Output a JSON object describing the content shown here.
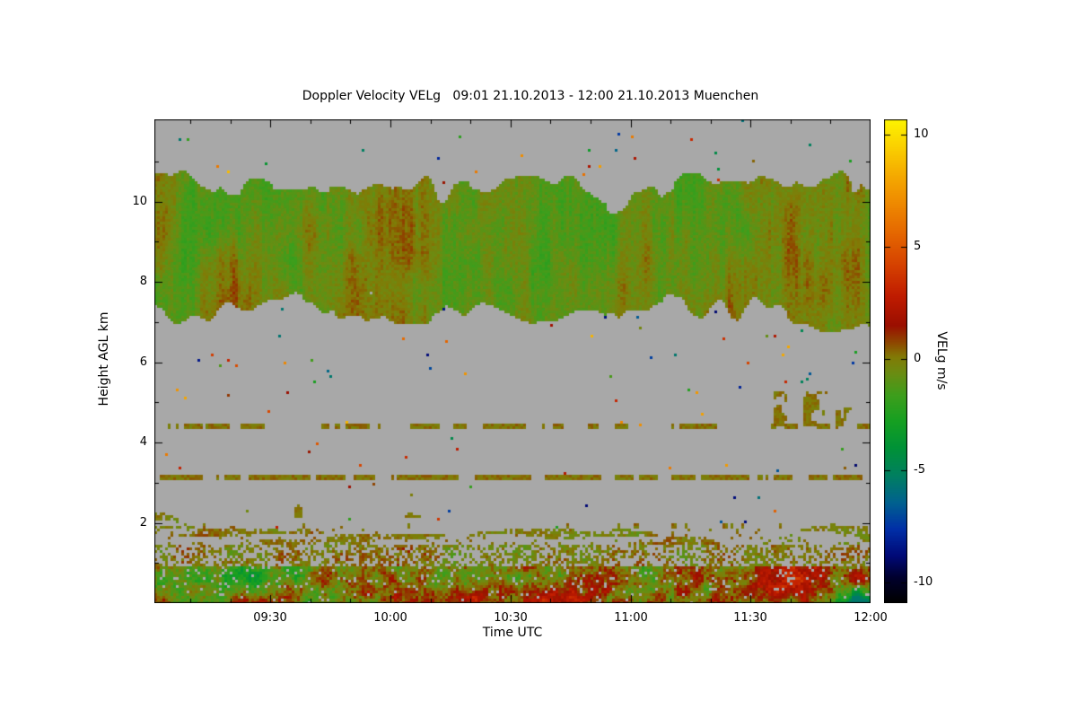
{
  "page": {
    "background": "#ffffff"
  },
  "chart_data": {
    "type": "heatmap",
    "title": "Doppler Velocity VELg   09:01 21.10.2013 - 12:00 21.10.2013 Muenchen",
    "xlabel": "Time UTC",
    "ylabel": "Height AGL km",
    "colorbar_label": "VELg m/s",
    "site": "Muenchen",
    "time_start": "09:01 21.10.2013",
    "time_end": "12:00 21.10.2013",
    "x_axis": {
      "start_label": "09:01",
      "end_label": "12:00",
      "start_minutes": 0,
      "end_minutes": 179,
      "minor_tick_minutes": 10,
      "ticks": [
        {
          "t": 29,
          "label": "09:30"
        },
        {
          "t": 59,
          "label": "10:00"
        },
        {
          "t": 89,
          "label": "10:30"
        },
        {
          "t": 119,
          "label": "11:00"
        },
        {
          "t": 149,
          "label": "11:30"
        },
        {
          "t": 179,
          "label": "12:00"
        }
      ]
    },
    "y_axis": {
      "min_km": 0,
      "max_km": 12.05,
      "ticks": [
        {
          "v": 2,
          "label": "2"
        },
        {
          "v": 4,
          "label": "4"
        },
        {
          "v": 6,
          "label": "6"
        },
        {
          "v": 8,
          "label": "8"
        },
        {
          "v": 10,
          "label": "10"
        }
      ]
    },
    "colorbar": {
      "min": -10.9,
      "max": 10.7,
      "ticks": [
        {
          "v": 10,
          "label": "10"
        },
        {
          "v": 5,
          "label": "5"
        },
        {
          "v": 0,
          "label": "0"
        },
        {
          "v": -5,
          "label": "-5"
        },
        {
          "v": -10,
          "label": "-10"
        }
      ]
    },
    "no_data_color": "#a8a8a8",
    "colormap_stops": [
      [
        -10.9,
        "#000000"
      ],
      [
        -9.8,
        "#00002d"
      ],
      [
        -8.8,
        "#000a78"
      ],
      [
        -7.6,
        "#0030a8"
      ],
      [
        -6.4,
        "#00638f"
      ],
      [
        -5.2,
        "#008060"
      ],
      [
        -4.0,
        "#009238"
      ],
      [
        -2.8,
        "#16a022"
      ],
      [
        -1.6,
        "#3f9e1c"
      ],
      [
        -0.6,
        "#6d8c12"
      ],
      [
        0.1,
        "#837a06"
      ],
      [
        0.7,
        "#8e4a00"
      ],
      [
        1.5,
        "#9b0f00"
      ],
      [
        2.8,
        "#c01c00"
      ],
      [
        4.2,
        "#d64200"
      ],
      [
        5.6,
        "#e56700"
      ],
      [
        7.0,
        "#ef8b00"
      ],
      [
        8.4,
        "#f6b000"
      ],
      [
        9.6,
        "#fbd400"
      ],
      [
        10.7,
        "#fdf400"
      ]
    ],
    "features": {
      "seed": 7,
      "cloud_layer": {
        "description": "mid/upper level cloud deck of mostly weak velocities (olive/green with red-brown patches)",
        "top_km_mean": 10.5,
        "top_km_var": 0.75,
        "base_km_mean": 7.1,
        "base_km_var": 0.8,
        "velocity_mean": -0.7,
        "velocity_range": [
          -4,
          3
        ]
      },
      "thin_layers": [
        {
          "km": 3.12,
          "half_width": 0.055,
          "coverage": 0.62
        },
        {
          "km": 4.4,
          "half_width": 0.06,
          "coverage": 0.5
        },
        {
          "km": 1.93,
          "half_width": 0.045,
          "coverage": 0.28
        }
      ],
      "boundary_layer": {
        "description": "noisy near-surface layer below ~1.9 km with alternating updrafts (red) and downdrafts (green)",
        "top_km": 1.82,
        "velocity_range": [
          -5.5,
          5
        ]
      },
      "speckle_probability": 0.0045
    }
  }
}
